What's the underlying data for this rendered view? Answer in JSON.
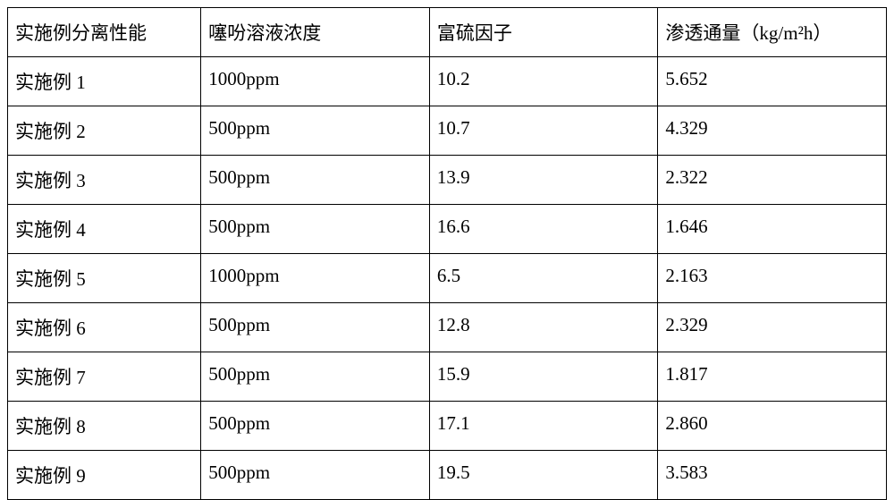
{
  "table": {
    "type": "table",
    "background_color": "#ffffff",
    "border_color": "#000000",
    "text_color": "#000000",
    "font_size": 21,
    "font_family": "SimSun",
    "columns": [
      {
        "key": "c0",
        "label": "实施例分离性能",
        "width_pct": 22,
        "align": "left"
      },
      {
        "key": "c1",
        "label": "噻吩溶液浓度",
        "width_pct": 26,
        "align": "left"
      },
      {
        "key": "c2",
        "label": "富硫因子",
        "width_pct": 26,
        "align": "left"
      },
      {
        "key": "c3",
        "label": "渗透通量（kg/m²h）",
        "width_pct": 26,
        "align": "left"
      }
    ],
    "rows": [
      {
        "c0": "实施例 1",
        "c1": "1000ppm",
        "c2": "10.2",
        "c3": "5.652"
      },
      {
        "c0": "实施例 2",
        "c1": "500ppm",
        "c2": "10.7",
        "c3": "4.329"
      },
      {
        "c0": "实施例 3",
        "c1": "500ppm",
        "c2": "13.9",
        "c3": "2.322"
      },
      {
        "c0": "实施例 4",
        "c1": "500ppm",
        "c2": "16.6",
        "c3": "1.646"
      },
      {
        "c0": "实施例 5",
        "c1": "1000ppm",
        "c2": "6.5",
        "c3": "2.163"
      },
      {
        "c0": "实施例 6",
        "c1": "500ppm",
        "c2": "12.8",
        "c3": "2.329"
      },
      {
        "c0": "实施例 7",
        "c1": "500ppm",
        "c2": "15.9",
        "c3": "1.817"
      },
      {
        "c0": "实施例 8",
        "c1": "500ppm",
        "c2": "17.1",
        "c3": "2.860"
      },
      {
        "c0": "实施例 9",
        "c1": "500ppm",
        "c2": "19.5",
        "c3": "3.583"
      }
    ]
  }
}
